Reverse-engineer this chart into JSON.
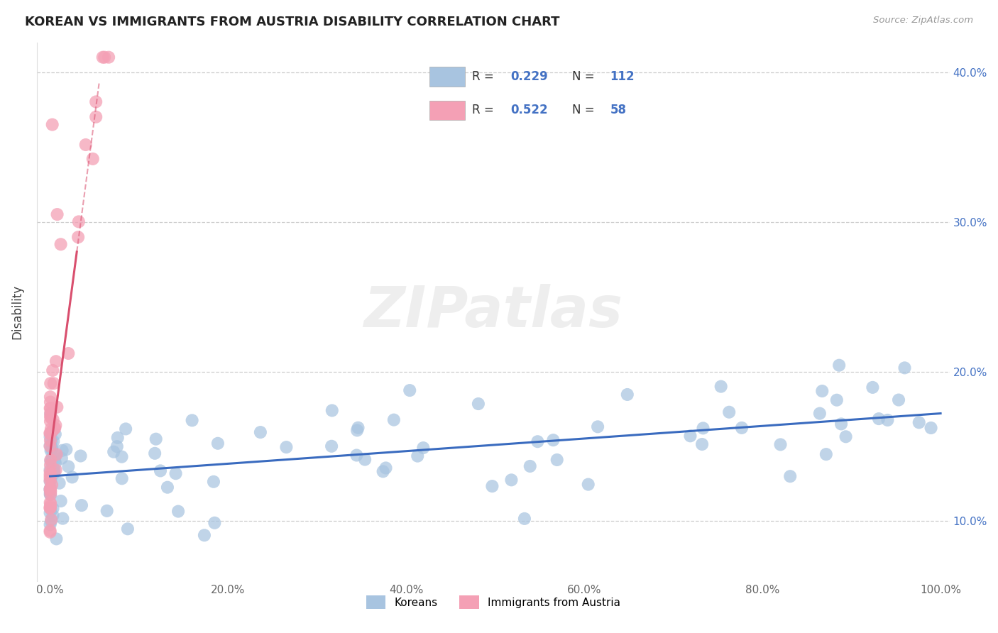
{
  "title": "KOREAN VS IMMIGRANTS FROM AUSTRIA DISABILITY CORRELATION CHART",
  "source_text": "Source: ZipAtlas.com",
  "ylabel": "Disability",
  "watermark": "ZIPatlas",
  "legend_korean_R": "0.229",
  "legend_korean_N": "112",
  "legend_austria_R": "0.522",
  "legend_austria_N": "58",
  "xlim": [
    -1.5,
    101.0
  ],
  "ylim": [
    6.0,
    42.0
  ],
  "xticks": [
    0.0,
    20.0,
    40.0,
    60.0,
    80.0,
    100.0
  ],
  "yticks": [
    10.0,
    20.0,
    30.0,
    40.0
  ],
  "ytick_labels": [
    "10.0%",
    "20.0%",
    "30.0%",
    "40.0%"
  ],
  "xtick_labels": [
    "0.0%",
    "20.0%",
    "40.0%",
    "60.0%",
    "80.0%",
    "100.0%"
  ],
  "korean_color": "#a8c4e0",
  "austria_color": "#f4a0b5",
  "korean_line_color": "#3a6bbf",
  "austria_line_color": "#d94f6e",
  "background_color": "#ffffff",
  "grid_color": "#c8c8c8",
  "title_color": "#222222",
  "value_color": "#4472c4",
  "label_color": "#888888",
  "korean_line_intercept": 13.0,
  "korean_line_slope": 0.042,
  "austria_line_intercept": 14.5,
  "austria_line_slope": 4.5,
  "austria_line_xmax": 3.0,
  "austria_dash_xmin": 3.0,
  "austria_dash_xmax": 5.5
}
